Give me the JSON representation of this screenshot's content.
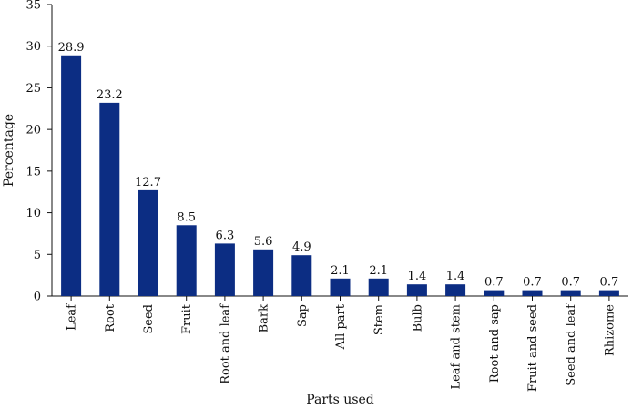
{
  "chart_data": {
    "type": "bar",
    "categories": [
      "Leaf",
      "Root",
      "Seed",
      "Fruit",
      "Root and leaf",
      "Bark",
      "Sap",
      "All part",
      "Stem",
      "Bulb",
      "Leaf and stem",
      "Root and sap",
      "Fruit and seed",
      "Seed and leaf",
      "Rhizome"
    ],
    "values": [
      28.9,
      23.2,
      12.7,
      8.5,
      6.3,
      5.6,
      4.9,
      2.1,
      2.1,
      1.4,
      1.4,
      0.7,
      0.7,
      0.7,
      0.7
    ],
    "data_labels": [
      "28.9",
      "23.2",
      "12.7",
      "8.5",
      "6.3",
      "5.6",
      "4.9",
      "2.1",
      "2.1",
      "1.4",
      "1.4",
      "0.7",
      "0.7",
      "0.7",
      "0.7"
    ],
    "yticks": [
      0,
      5,
      10,
      15,
      20,
      25,
      30,
      35
    ],
    "xlabel": "Parts used",
    "ylabel": "Percentage",
    "ylim": [
      0,
      35
    ],
    "grid": false,
    "bar_color": "#0c2d83"
  }
}
